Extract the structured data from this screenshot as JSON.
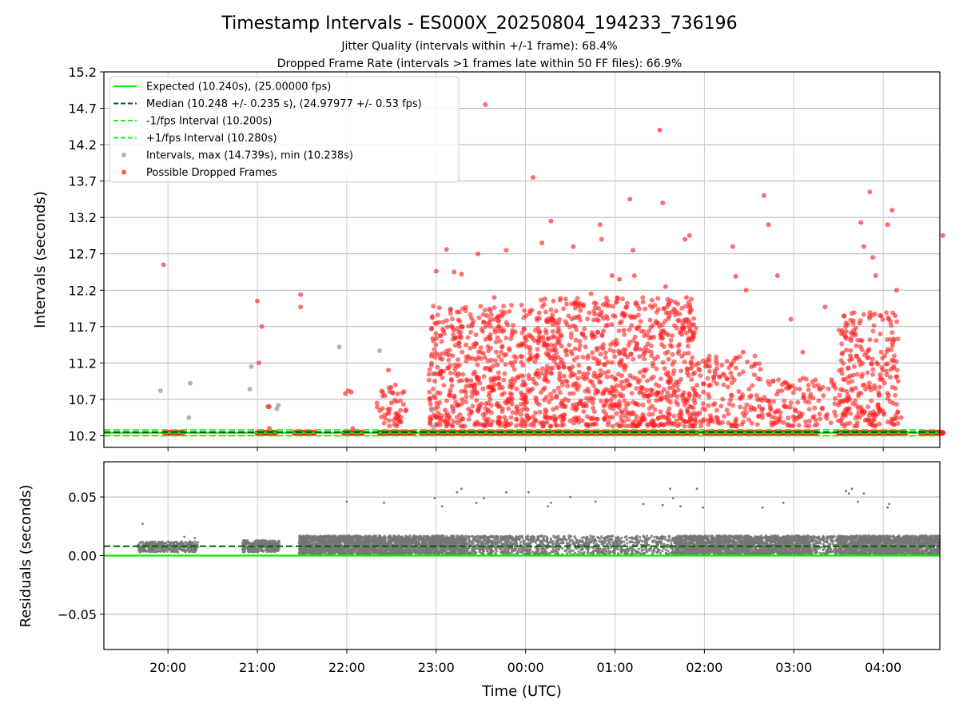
{
  "figure": {
    "title": "Timestamp Intervals - ES000X_20250804_194233_736196",
    "subtitle_1": "Jitter Quality (intervals within +/-1 frame): 68.4%",
    "subtitle_2": "Dropped Frame Rate (intervals >1 frames late within 50 FF files): 66.9%"
  },
  "colors": {
    "expected": "#00ee00",
    "median": "#006400",
    "tolerance": "#22ee22",
    "intervals": "#999999",
    "dropped": "#ff2020",
    "residual_points": "#777777",
    "grid": "#b0b0b0"
  },
  "chart_data": [
    {
      "type": "scatter",
      "name": "intervals",
      "xlabel": "",
      "ylabel": "Intervals (seconds)",
      "ylim": [
        10.04,
        15.2
      ],
      "yticks": [
        "10.2",
        "10.7",
        "11.2",
        "11.7",
        "12.2",
        "12.7",
        "13.2",
        "13.7",
        "14.2",
        "14.7",
        "15.2"
      ],
      "ytick_values": [
        10.2,
        10.7,
        11.2,
        11.7,
        12.2,
        12.7,
        13.2,
        13.7,
        14.2,
        14.7,
        15.2
      ],
      "grid": true,
      "legend_position": "top-left",
      "legend": [
        {
          "label": "Expected (10.240s), (25.00000 fps)",
          "kind": "solid-line",
          "color": "#00ee00"
        },
        {
          "label": "Median (10.248 +/- 0.235 s), (24.97977 +/- 0.53 fps)",
          "kind": "dashed-line",
          "color": "#006400"
        },
        {
          "label": "-1/fps Interval (10.200s)",
          "kind": "dashed-line",
          "color": "#22ee22"
        },
        {
          "label": "+1/fps Interval (10.280s)",
          "kind": "dashed-line",
          "color": "#22ee22"
        },
        {
          "label": "Intervals, max (14.739s), min (10.238s)",
          "kind": "marker",
          "color": "#999999"
        },
        {
          "label": "Possible Dropped Frames",
          "kind": "marker",
          "color": "#ff2020"
        }
      ],
      "reference_lines": {
        "expected": 10.24,
        "median": 10.248,
        "minus_one_frame": 10.2,
        "plus_one_frame": 10.28
      },
      "series": [
        {
          "name": "Intervals, max (14.739s), min (10.238s)",
          "points": [
            [
              "19:55",
              10.82
            ],
            [
              "20:14",
              10.45
            ],
            [
              "20:15",
              10.92
            ],
            [
              "20:55",
              10.84
            ],
            [
              "20:56",
              11.15
            ],
            [
              "21:13",
              10.57
            ],
            [
              "21:14",
              10.62
            ],
            [
              "21:55",
              11.42
            ],
            [
              "22:22",
              11.37
            ],
            [
              "22:58",
              10.32
            ],
            [
              "22:58",
              11.05
            ],
            [
              "22:57",
              10.55
            ],
            [
              "02:10",
              10.52
            ],
            [
              "02:12",
              10.45
            ],
            [
              "02:45",
              10.88
            ],
            [
              "03:29",
              10.5
            ],
            [
              "03:32",
              10.45
            ],
            [
              "03:33",
              10.68
            ],
            [
              "03:34",
              10.88
            ],
            [
              "03:35",
              10.7
            ]
          ]
        },
        {
          "name": "Possible Dropped Frames",
          "points": [
            [
              "19:57",
              12.55
            ],
            [
              "21:00",
              12.05
            ],
            [
              "21:01",
              11.2
            ],
            [
              "21:03",
              11.7
            ],
            [
              "21:07",
              10.6
            ],
            [
              "21:08",
              10.6
            ],
            [
              "21:08",
              10.3
            ],
            [
              "21:29",
              12.14
            ],
            [
              "21:29",
              11.97
            ],
            [
              "21:59",
              10.78
            ],
            [
              "22:01",
              10.82
            ],
            [
              "22:03",
              10.8
            ],
            [
              "22:04",
              10.3
            ],
            [
              "22:24",
              10.8
            ],
            [
              "22:28",
              11.1
            ],
            [
              "22:30",
              10.65
            ],
            [
              "22:59",
              11.05
            ],
            [
              "22:59",
              10.95
            ],
            [
              "23:00",
              12.46
            ],
            [
              "23:00",
              11.33
            ],
            [
              "23:04",
              11.25
            ],
            [
              "23:06",
              10.55
            ],
            [
              "23:07",
              12.76
            ],
            [
              "23:12",
              12.45
            ],
            [
              "23:14",
              11.9
            ],
            [
              "23:17",
              12.42
            ],
            [
              "23:20",
              11.45
            ],
            [
              "23:28",
              12.7
            ],
            [
              "23:33",
              14.75
            ],
            [
              "23:34",
              11.85
            ],
            [
              "23:39",
              12.1
            ],
            [
              "23:47",
              12.75
            ],
            [
              "23:54",
              10.6
            ],
            [
              "23:55",
              11.44
            ],
            [
              "24:05",
              13.75
            ],
            [
              "24:11",
              12.85
            ],
            [
              "24:13",
              12.08
            ],
            [
              "24:17",
              13.15
            ],
            [
              "24:22",
              11.75
            ],
            [
              "24:26",
              10.6
            ],
            [
              "24:32",
              12.8
            ],
            [
              "24:44",
              12.15
            ],
            [
              "24:49",
              11.95
            ],
            [
              "24:50",
              13.1
            ],
            [
              "24:51",
              12.9
            ],
            [
              "24:58",
              12.4
            ],
            [
              "25:03",
              12.35
            ],
            [
              "25:10",
              13.45
            ],
            [
              "25:12",
              12.75
            ],
            [
              "25:13",
              12.4
            ],
            [
              "25:30",
              14.4
            ],
            [
              "25:32",
              13.4
            ],
            [
              "25:34",
              12.25
            ],
            [
              "25:47",
              12.9
            ],
            [
              "25:48",
              12.1
            ],
            [
              "25:50",
              12.95
            ],
            [
              "26:01",
              11.2
            ],
            [
              "26:04",
              10.9
            ],
            [
              "26:09",
              10.38
            ],
            [
              "26:19",
              12.8
            ],
            [
              "26:21",
              12.39
            ],
            [
              "26:26",
              11.35
            ],
            [
              "26:28",
              12.2
            ],
            [
              "26:40",
              13.5
            ],
            [
              "26:43",
              13.1
            ],
            [
              "26:49",
              12.4
            ],
            [
              "26:54",
              10.6
            ],
            [
              "26:58",
              11.8
            ],
            [
              "27:06",
              11.35
            ],
            [
              "27:21",
              11.97
            ],
            [
              "27:33",
              10.5
            ],
            [
              "27:35",
              10.7
            ],
            [
              "27:38",
              11.3
            ],
            [
              "27:45",
              13.13
            ],
            [
              "27:47",
              12.8
            ],
            [
              "27:51",
              13.55
            ],
            [
              "27:53",
              12.65
            ],
            [
              "27:55",
              12.4
            ],
            [
              "28:03",
              13.1
            ],
            [
              "28:06",
              13.3
            ],
            [
              "28:08",
              11.85
            ],
            [
              "28:09",
              12.2
            ],
            [
              "28:10",
              10.95
            ],
            [
              "28:12",
              10.45
            ],
            [
              "28:40",
              12.95
            ],
            [
              "24:51",
              11.9
            ],
            [
              "24:52",
              11.4
            ],
            [
              "24:42",
              11.3
            ],
            [
              "24:39",
              11.05
            ],
            [
              "25:06",
              11.65
            ],
            [
              "25:36",
              11.25
            ],
            [
              "25:28",
              11.75
            ],
            [
              "24:15",
              11.45
            ],
            [
              "23:50",
              11.2
            ],
            [
              "23:25",
              11.05
            ]
          ]
        }
      ],
      "dense_cluster_bands": [
        {
          "from": "22:20",
          "to": "22:40",
          "ymax": 10.9,
          "density": 0.3
        },
        {
          "from": "22:55",
          "to": "24:05",
          "ymax": 12.0,
          "density": 0.9
        },
        {
          "from": "24:05",
          "to": "25:55",
          "ymax": 12.1,
          "density": 1.0
        },
        {
          "from": "25:55",
          "to": "26:40",
          "ymax": 11.3,
          "density": 0.4
        },
        {
          "from": "26:40",
          "to": "27:30",
          "ymax": 11.0,
          "density": 0.3
        },
        {
          "from": "27:30",
          "to": "28:10",
          "ymax": 11.9,
          "density": 0.8
        }
      ],
      "baseline_segments": [
        {
          "from": "19:58",
          "to": "20:10",
          "y": 10.24
        },
        {
          "from": "21:00",
          "to": "21:12",
          "y": 10.24
        },
        {
          "from": "21:25",
          "to": "21:38",
          "y": 10.24
        },
        {
          "from": "21:58",
          "to": "22:10",
          "y": 10.24
        },
        {
          "from": "22:22",
          "to": "22:45",
          "y": 10.24
        },
        {
          "from": "22:50",
          "to": "25:55",
          "y": 10.24
        },
        {
          "from": "26:00",
          "to": "27:15",
          "y": 10.24
        },
        {
          "from": "27:30",
          "to": "28:15",
          "y": 10.24
        },
        {
          "from": "28:25",
          "to": "28:40",
          "y": 10.24
        }
      ]
    },
    {
      "type": "scatter",
      "name": "residuals",
      "xlabel": "Time (UTC)",
      "ylabel": "Residuals (seconds)",
      "ylim": [
        -0.08,
        0.08
      ],
      "yticks": [
        "−0.05",
        "0.00",
        "0.05"
      ],
      "ytick_values": [
        -0.05,
        0.0,
        0.05
      ],
      "xlim": [
        "19:17",
        "28:38"
      ],
      "xticks": [
        "20:00",
        "21:00",
        "22:00",
        "23:00",
        "00:00",
        "01:00",
        "02:00",
        "03:00",
        "04:00"
      ],
      "xtick_values": [
        "20:00",
        "21:00",
        "22:00",
        "23:00",
        "24:00",
        "25:00",
        "26:00",
        "27:00",
        "28:00"
      ],
      "grid": true,
      "reference_lines": {
        "expected": 0.0,
        "median": 0.008
      },
      "outliers": [
        [
          "19:43",
          0.027
        ],
        [
          "20:11",
          0.016
        ],
        [
          "20:18",
          0.015
        ],
        [
          "22:00",
          0.046
        ],
        [
          "22:25",
          0.045
        ],
        [
          "22:59",
          0.049
        ],
        [
          "23:04",
          0.042
        ],
        [
          "23:14",
          0.054
        ],
        [
          "23:17",
          0.057
        ],
        [
          "23:27",
          0.045
        ],
        [
          "23:32",
          0.049
        ],
        [
          "23:47",
          0.054
        ],
        [
          "24:02",
          0.054
        ],
        [
          "24:15",
          0.042
        ],
        [
          "24:17",
          0.045
        ],
        [
          "24:30",
          0.05
        ],
        [
          "24:47",
          0.046
        ],
        [
          "25:19",
          0.044
        ],
        [
          "25:32",
          0.043
        ],
        [
          "25:37",
          0.057
        ],
        [
          "25:39",
          0.049
        ],
        [
          "25:44",
          0.042
        ],
        [
          "25:55",
          0.057
        ],
        [
          "25:59",
          0.041
        ],
        [
          "26:39",
          0.041
        ],
        [
          "26:53",
          0.045
        ],
        [
          "27:35",
          0.055
        ],
        [
          "27:37",
          0.053
        ],
        [
          "27:39",
          0.057
        ],
        [
          "27:43",
          0.046
        ],
        [
          "27:47",
          0.053
        ],
        [
          "28:03",
          0.041
        ],
        [
          "28:04",
          0.044
        ]
      ],
      "bands": [
        {
          "from": "19:40",
          "to": "20:20",
          "low": 0.003,
          "high": 0.012,
          "density": 0.4
        },
        {
          "from": "20:50",
          "to": "21:15",
          "low": 0.003,
          "high": 0.013,
          "density": 0.5
        },
        {
          "from": "21:28",
          "to": "23:20",
          "low": 0.001,
          "high": 0.017,
          "density": 1.0
        },
        {
          "from": "23:20",
          "to": "24:10",
          "low": 0.001,
          "high": 0.017,
          "density": 0.45
        },
        {
          "from": "24:10",
          "to": "25:40",
          "low": 0.001,
          "high": 0.017,
          "density": 0.3
        },
        {
          "from": "25:40",
          "to": "27:10",
          "low": 0.001,
          "high": 0.017,
          "density": 1.0
        },
        {
          "from": "27:10",
          "to": "27:30",
          "low": 0.001,
          "high": 0.017,
          "density": 0.4
        },
        {
          "from": "27:30",
          "to": "28:38",
          "low": 0.001,
          "high": 0.017,
          "density": 1.0
        }
      ]
    }
  ]
}
